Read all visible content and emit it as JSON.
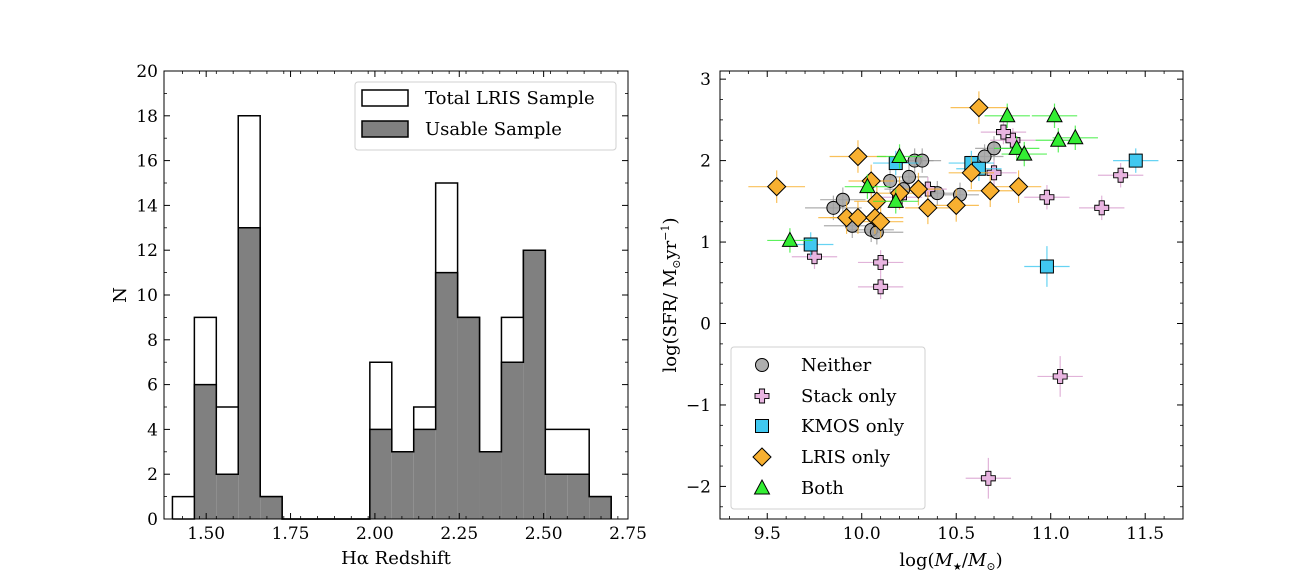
{
  "chart_data": [
    {
      "type": "histogram",
      "xlabel": "Hα Redshift",
      "ylabel": "N",
      "xlim": [
        1.375,
        2.75
      ],
      "ylim": [
        0,
        20
      ],
      "xticks": [
        1.5,
        1.75,
        2.0,
        2.25,
        2.5,
        2.75
      ],
      "xtick_labels": [
        "1.50",
        "1.75",
        "2.00",
        "2.25",
        "2.50",
        "2.75"
      ],
      "yticks": [
        0,
        2,
        4,
        6,
        8,
        10,
        12,
        14,
        16,
        18,
        20
      ],
      "bin_edges": [
        1.4,
        1.465,
        1.53,
        1.595,
        1.66,
        1.725,
        1.79,
        1.855,
        1.92,
        1.985,
        2.05,
        2.115,
        2.18,
        2.245,
        2.31,
        2.375,
        2.44,
        2.505,
        2.57,
        2.635,
        2.7
      ],
      "series": [
        {
          "name": "Total LRIS Sample",
          "style": "step-outline",
          "edgecolor": "#000000",
          "facecolor": "none",
          "counts": [
            1,
            9,
            5,
            18,
            1,
            0,
            0,
            0,
            0,
            7,
            3,
            5,
            15,
            9,
            3,
            9,
            12,
            4,
            4,
            1
          ]
        },
        {
          "name": "Usable Sample",
          "style": "filled",
          "edgecolor": "#000000",
          "facecolor": "#808080",
          "counts": [
            0,
            6,
            2,
            13,
            1,
            0,
            0,
            0,
            0,
            4,
            3,
            4,
            11,
            9,
            3,
            7,
            12,
            2,
            2,
            1
          ]
        }
      ],
      "legend": {
        "position": "upper right",
        "entries": [
          {
            "label": "Total LRIS Sample",
            "facecolor": "#ffffff"
          },
          {
            "label": "Usable Sample",
            "facecolor": "#808080"
          }
        ]
      }
    },
    {
      "type": "scatter",
      "xlabel": "log(M★/M⊙)",
      "ylabel": "log(SFR/ M⊙yr⁻¹)",
      "xlim": [
        9.25,
        11.7
      ],
      "ylim": [
        -2.4,
        3.1
      ],
      "xticks": [
        9.5,
        10.0,
        10.5,
        11.0,
        11.5
      ],
      "xtick_labels": [
        "9.5",
        "10.0",
        "10.5",
        "11.0",
        "11.5"
      ],
      "yticks": [
        -2,
        -1,
        0,
        1,
        2,
        3
      ],
      "ytick_labels": [
        "−2",
        "−1",
        "0",
        "1",
        "2",
        "3"
      ],
      "series": [
        {
          "name": "Neither",
          "marker": "circle",
          "color": "#a0a0a0",
          "errcolor": "#999999",
          "points": [
            {
              "x": 9.85,
              "y": 1.42,
              "xerr": 0.15,
              "yerr": 0.15
            },
            {
              "x": 9.9,
              "y": 1.52,
              "xerr": 0.12,
              "yerr": 0.15
            },
            {
              "x": 9.95,
              "y": 1.2,
              "xerr": 0.15,
              "yerr": 0.15
            },
            {
              "x": 10.05,
              "y": 1.15,
              "xerr": 0.12,
              "yerr": 0.15
            },
            {
              "x": 10.08,
              "y": 1.12,
              "xerr": 0.14,
              "yerr": 0.15
            },
            {
              "x": 10.15,
              "y": 1.75,
              "xerr": 0.12,
              "yerr": 0.15
            },
            {
              "x": 10.22,
              "y": 1.65,
              "xerr": 0.1,
              "yerr": 0.15
            },
            {
              "x": 10.25,
              "y": 1.8,
              "xerr": 0.1,
              "yerr": 0.15
            },
            {
              "x": 10.28,
              "y": 2.0,
              "xerr": 0.1,
              "yerr": 0.15
            },
            {
              "x": 10.32,
              "y": 2.0,
              "xerr": 0.1,
              "yerr": 0.15
            },
            {
              "x": 10.3,
              "y": 1.65,
              "xerr": 0.12,
              "yerr": 0.15
            },
            {
              "x": 10.4,
              "y": 1.6,
              "xerr": 0.1,
              "yerr": 0.15
            },
            {
              "x": 10.52,
              "y": 1.58,
              "xerr": 0.1,
              "yerr": 0.15
            },
            {
              "x": 10.65,
              "y": 2.05,
              "xerr": 0.1,
              "yerr": 0.15
            },
            {
              "x": 10.7,
              "y": 2.15,
              "xerr": 0.1,
              "yerr": 0.15
            }
          ]
        },
        {
          "name": "Stack only",
          "marker": "plus",
          "color": "#e8b4e0",
          "errcolor": "#d9a0d0",
          "points": [
            {
              "x": 9.75,
              "y": 0.82,
              "xerr": 0.12,
              "yerr": 0.15
            },
            {
              "x": 10.1,
              "y": 0.75,
              "xerr": 0.12,
              "yerr": 0.15
            },
            {
              "x": 10.1,
              "y": 0.45,
              "xerr": 0.12,
              "yerr": 0.15
            },
            {
              "x": 10.2,
              "y": 1.55,
              "xerr": 0.12,
              "yerr": 0.15
            },
            {
              "x": 10.35,
              "y": 1.65,
              "xerr": 0.1,
              "yerr": 0.15
            },
            {
              "x": 10.75,
              "y": 2.35,
              "xerr": 0.12,
              "yerr": 0.15
            },
            {
              "x": 10.8,
              "y": 2.25,
              "xerr": 0.12,
              "yerr": 0.15
            },
            {
              "x": 10.7,
              "y": 1.85,
              "xerr": 0.12,
              "yerr": 0.15
            },
            {
              "x": 10.98,
              "y": 1.55,
              "xerr": 0.12,
              "yerr": 0.15
            },
            {
              "x": 11.27,
              "y": 1.42,
              "xerr": 0.12,
              "yerr": 0.15
            },
            {
              "x": 11.37,
              "y": 1.82,
              "xerr": 0.12,
              "yerr": 0.15
            },
            {
              "x": 11.05,
              "y": -0.65,
              "xerr": 0.12,
              "yerr": 0.25
            },
            {
              "x": 10.67,
              "y": -1.9,
              "xerr": 0.12,
              "yerr": 0.25
            }
          ]
        },
        {
          "name": "KMOS only",
          "marker": "square",
          "color": "#40c8f0",
          "errcolor": "#40c8f0",
          "points": [
            {
              "x": 9.73,
              "y": 0.97,
              "xerr": 0.12,
              "yerr": 0.15
            },
            {
              "x": 10.18,
              "y": 1.97,
              "xerr": 0.12,
              "yerr": 0.15
            },
            {
              "x": 10.58,
              "y": 1.97,
              "xerr": 0.12,
              "yerr": 0.15
            },
            {
              "x": 10.62,
              "y": 1.9,
              "xerr": 0.12,
              "yerr": 0.15
            },
            {
              "x": 10.98,
              "y": 0.7,
              "xerr": 0.12,
              "yerr": 0.25
            },
            {
              "x": 11.45,
              "y": 2.0,
              "xerr": 0.12,
              "yerr": 0.15
            }
          ]
        },
        {
          "name": "LRIS only",
          "marker": "diamond",
          "color": "#f8b030",
          "errcolor": "#f8b030",
          "points": [
            {
              "x": 9.55,
              "y": 1.68,
              "xerr": 0.15,
              "yerr": 0.2
            },
            {
              "x": 9.98,
              "y": 2.05,
              "xerr": 0.15,
              "yerr": 0.2
            },
            {
              "x": 9.92,
              "y": 1.3,
              "xerr": 0.15,
              "yerr": 0.2
            },
            {
              "x": 9.98,
              "y": 1.3,
              "xerr": 0.15,
              "yerr": 0.2
            },
            {
              "x": 10.07,
              "y": 1.3,
              "xerr": 0.15,
              "yerr": 0.2
            },
            {
              "x": 10.1,
              "y": 1.25,
              "xerr": 0.12,
              "yerr": 0.2
            },
            {
              "x": 10.05,
              "y": 1.75,
              "xerr": 0.12,
              "yerr": 0.2
            },
            {
              "x": 10.08,
              "y": 1.5,
              "xerr": 0.12,
              "yerr": 0.2
            },
            {
              "x": 10.2,
              "y": 1.6,
              "xerr": 0.12,
              "yerr": 0.2
            },
            {
              "x": 10.3,
              "y": 1.65,
              "xerr": 0.12,
              "yerr": 0.2
            },
            {
              "x": 10.35,
              "y": 1.42,
              "xerr": 0.12,
              "yerr": 0.2
            },
            {
              "x": 10.5,
              "y": 1.45,
              "xerr": 0.12,
              "yerr": 0.2
            },
            {
              "x": 10.58,
              "y": 1.85,
              "xerr": 0.12,
              "yerr": 0.2
            },
            {
              "x": 10.62,
              "y": 2.65,
              "xerr": 0.15,
              "yerr": 0.2
            },
            {
              "x": 10.68,
              "y": 1.63,
              "xerr": 0.12,
              "yerr": 0.2
            },
            {
              "x": 10.83,
              "y": 1.68,
              "xerr": 0.12,
              "yerr": 0.2
            }
          ]
        },
        {
          "name": "Both",
          "marker": "triangle",
          "color": "#33ee33",
          "errcolor": "#33ee33",
          "points": [
            {
              "x": 9.62,
              "y": 1.02,
              "xerr": 0.12,
              "yerr": 0.15
            },
            {
              "x": 10.03,
              "y": 1.68,
              "xerr": 0.12,
              "yerr": 0.15
            },
            {
              "x": 10.18,
              "y": 1.5,
              "xerr": 0.12,
              "yerr": 0.15
            },
            {
              "x": 10.2,
              "y": 2.05,
              "xerr": 0.12,
              "yerr": 0.15
            },
            {
              "x": 10.77,
              "y": 2.55,
              "xerr": 0.12,
              "yerr": 0.15
            },
            {
              "x": 10.82,
              "y": 2.15,
              "xerr": 0.12,
              "yerr": 0.15
            },
            {
              "x": 10.86,
              "y": 2.08,
              "xerr": 0.12,
              "yerr": 0.15
            },
            {
              "x": 11.02,
              "y": 2.55,
              "xerr": 0.12,
              "yerr": 0.15
            },
            {
              "x": 11.04,
              "y": 2.25,
              "xerr": 0.12,
              "yerr": 0.15
            },
            {
              "x": 11.13,
              "y": 2.28,
              "xerr": 0.12,
              "yerr": 0.15
            }
          ]
        }
      ],
      "legend": {
        "position": "lower left",
        "entries": [
          {
            "label": "Neither",
            "marker": "circle",
            "color": "#a0a0a0"
          },
          {
            "label": "Stack only",
            "marker": "plus",
            "color": "#e8b4e0"
          },
          {
            "label": "KMOS only",
            "marker": "square",
            "color": "#40c8f0"
          },
          {
            "label": "LRIS only",
            "marker": "diamond",
            "color": "#f8b030"
          },
          {
            "label": "Both",
            "marker": "triangle",
            "color": "#33ee33"
          }
        ]
      }
    }
  ]
}
